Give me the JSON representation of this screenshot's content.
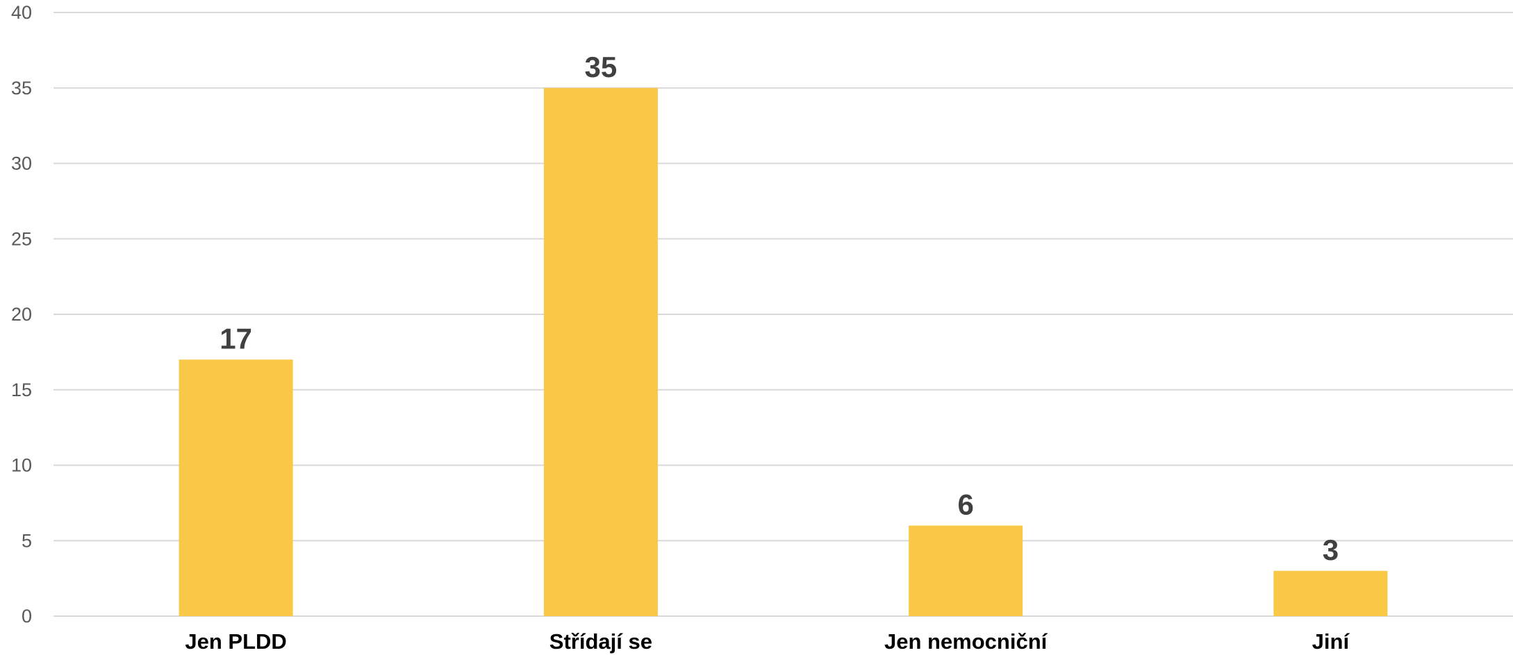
{
  "chart_data": {
    "type": "bar",
    "title": "",
    "xlabel": "",
    "ylabel": "",
    "categories": [
      "Jen PLDD",
      "Střídají se",
      "Jen nemocniční",
      "Jiní"
    ],
    "values": [
      17,
      35,
      6,
      3
    ],
    "ylim": [
      0,
      40
    ],
    "yticks": [
      0,
      5,
      10,
      15,
      20,
      25,
      30,
      35,
      40
    ],
    "grid": true,
    "legend": "none",
    "bar_color": "#F9C846",
    "data_labels": true
  }
}
